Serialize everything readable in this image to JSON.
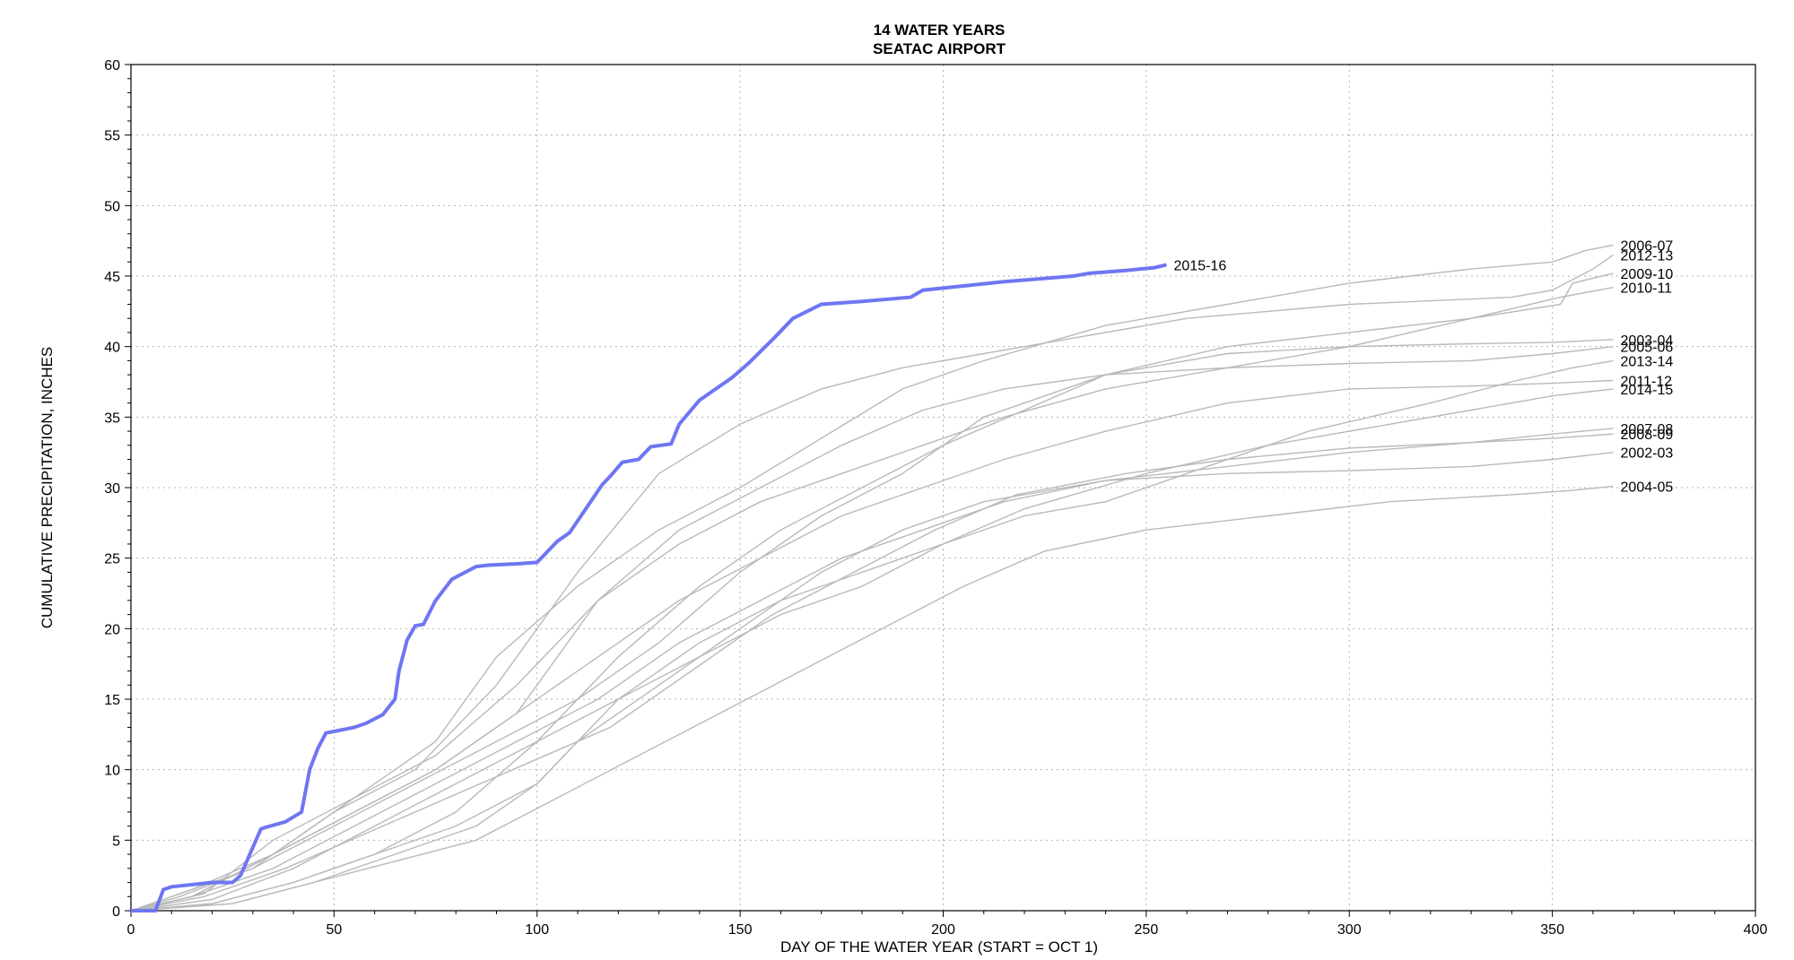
{
  "chart_data": {
    "type": "line",
    "title": "14 WATER YEARS",
    "subtitle": "SEATAC AIRPORT",
    "xlabel": "DAY OF THE WATER YEAR (START = OCT 1)",
    "ylabel": "CUMULATIVE PRECIPITATION, INCHES",
    "xlim": [
      0,
      400
    ],
    "ylim": [
      0,
      60
    ],
    "xticks": [
      0,
      50,
      100,
      150,
      200,
      250,
      300,
      350,
      400
    ],
    "yticks": [
      0,
      5,
      10,
      15,
      20,
      25,
      30,
      35,
      40,
      45,
      50,
      55,
      60
    ],
    "grid": true,
    "colors": {
      "highlight": "#6f76f2",
      "highlight_label": "#2a3ff0",
      "other": "#b9b9b9"
    },
    "series": [
      {
        "name": "2015-16",
        "highlight": true,
        "x": [
          0,
          6,
          8,
          10,
          20,
          25,
          27,
          32,
          33,
          38,
          42,
          44,
          46,
          48,
          55,
          58,
          62,
          65,
          66,
          68,
          70,
          72,
          75,
          79,
          81,
          85,
          88,
          95,
          100,
          105,
          108,
          112,
          116,
          118,
          121,
          125,
          128,
          133,
          135,
          140,
          148,
          152,
          158,
          163,
          170,
          180,
          192,
          195,
          205,
          215,
          232,
          236,
          245,
          252,
          255
        ],
        "y": [
          0,
          0,
          1.5,
          1.7,
          2,
          2,
          2.5,
          5.8,
          5.9,
          6.3,
          7,
          10,
          11.5,
          12.6,
          13,
          13.3,
          13.9,
          15,
          17,
          19.2,
          20.2,
          20.3,
          22,
          23.5,
          23.8,
          24.4,
          24.5,
          24.6,
          24.7,
          26.2,
          26.8,
          28.5,
          30.2,
          30.8,
          31.8,
          32,
          32.9,
          33.1,
          34.5,
          36.2,
          37.8,
          38.8,
          40.5,
          42,
          43,
          43.2,
          43.5,
          44,
          44.3,
          44.6,
          45,
          45.2,
          45.4,
          45.6,
          45.8
        ]
      },
      {
        "name": "2006-07",
        "x": [
          0,
          10,
          30,
          45,
          60,
          75,
          90,
          110,
          130,
          150,
          170,
          190,
          210,
          240,
          270,
          300,
          330,
          350,
          358,
          365
        ],
        "y": [
          0,
          1,
          3,
          6,
          9,
          12,
          18,
          23,
          27,
          30,
          33.5,
          37,
          39,
          41.5,
          43,
          44.5,
          45.5,
          46,
          46.8,
          47.2
        ]
      },
      {
        "name": "2012-13",
        "x": [
          0,
          15,
          35,
          50,
          70,
          90,
          110,
          130,
          150,
          170,
          190,
          210,
          230,
          260,
          300,
          340,
          350,
          360,
          365
        ],
        "y": [
          0,
          1.5,
          4,
          7,
          10,
          16,
          24,
          31,
          34.5,
          37,
          38.5,
          39.5,
          40.5,
          42,
          43,
          43.5,
          44,
          45.5,
          46.5
        ]
      },
      {
        "name": "2009-10",
        "x": [
          0,
          12,
          30,
          50,
          70,
          90,
          110,
          130,
          150,
          170,
          190,
          210,
          240,
          270,
          300,
          330,
          352,
          355,
          365
        ],
        "y": [
          0,
          1,
          3,
          6,
          9,
          12,
          15,
          19,
          24,
          28,
          31,
          35,
          38,
          40,
          41,
          42,
          43,
          44.5,
          45.2
        ]
      },
      {
        "name": "2010-11",
        "x": [
          0,
          18,
          35,
          55,
          75,
          95,
          115,
          135,
          155,
          175,
          195,
          215,
          240,
          270,
          300,
          330,
          352,
          365
        ],
        "y": [
          0,
          1.2,
          5,
          8,
          11,
          16,
          22,
          26,
          29,
          31,
          33,
          35,
          37,
          38.5,
          40,
          42,
          43.5,
          44.2
        ]
      },
      {
        "name": "2003-04",
        "x": [
          0,
          20,
          40,
          60,
          80,
          100,
          120,
          140,
          160,
          180,
          200,
          220,
          240,
          270,
          300,
          330,
          350,
          365
        ],
        "y": [
          0,
          0.5,
          2,
          4,
          7,
          12,
          18,
          23,
          27,
          30,
          33,
          35.5,
          38,
          39.5,
          40,
          40.2,
          40.3,
          40.5
        ]
      },
      {
        "name": "2005-06",
        "x": [
          0,
          15,
          35,
          55,
          75,
          95,
          115,
          135,
          155,
          175,
          195,
          215,
          240,
          270,
          300,
          330,
          350,
          365
        ],
        "y": [
          0,
          1,
          4,
          7,
          10,
          14,
          22,
          27,
          30,
          33,
          35.5,
          37,
          38,
          38.5,
          38.8,
          39,
          39.5,
          40
        ]
      },
      {
        "name": "2013-14",
        "x": [
          0,
          20,
          40,
          60,
          80,
          100,
          120,
          140,
          160,
          180,
          200,
          220,
          240,
          260,
          290,
          320,
          340,
          355,
          365
        ],
        "y": [
          0,
          0.5,
          2,
          4,
          6,
          9,
          15,
          19,
          22,
          24,
          26,
          28,
          29,
          31,
          34,
          36,
          37.5,
          38.5,
          39
        ]
      },
      {
        "name": "2011-12",
        "x": [
          0,
          15,
          35,
          55,
          75,
          95,
          115,
          135,
          155,
          175,
          195,
          215,
          240,
          270,
          300,
          330,
          350,
          365
        ],
        "y": [
          0,
          1,
          4,
          7,
          10,
          14,
          18,
          22,
          25,
          28,
          30,
          32,
          34,
          36,
          37,
          37.2,
          37.4,
          37.6
        ]
      },
      {
        "name": "2014-15",
        "x": [
          0,
          20,
          40,
          60,
          80,
          100,
          120,
          140,
          160,
          180,
          200,
          220,
          250,
          280,
          300,
          330,
          350,
          365
        ],
        "y": [
          0,
          0.8,
          3,
          6,
          9,
          12,
          15,
          18,
          21,
          23,
          26,
          28.5,
          31,
          33,
          34,
          35.5,
          36.5,
          37
        ]
      },
      {
        "name": "2007-08",
        "x": [
          0,
          15,
          35,
          55,
          75,
          95,
          115,
          135,
          155,
          175,
          195,
          215,
          240,
          270,
          300,
          330,
          350,
          365
        ],
        "y": [
          0,
          1,
          3,
          6,
          9,
          12,
          15,
          19,
          22,
          25,
          27,
          29,
          30.5,
          31.5,
          32.5,
          33.2,
          33.8,
          34.2
        ]
      },
      {
        "name": "2008-09",
        "x": [
          0,
          18,
          38,
          58,
          78,
          98,
          118,
          138,
          158,
          178,
          198,
          218,
          245,
          270,
          300,
          330,
          350,
          365
        ],
        "y": [
          0,
          1,
          3,
          5.5,
          8,
          10.5,
          13,
          17,
          21,
          24,
          27,
          29.5,
          31,
          32,
          32.8,
          33.2,
          33.5,
          33.8
        ]
      },
      {
        "name": "2002-03",
        "x": [
          0,
          25,
          45,
          65,
          85,
          100,
          110,
          130,
          150,
          170,
          190,
          210,
          240,
          270,
          300,
          330,
          350,
          365
        ],
        "y": [
          0,
          0.5,
          2,
          4,
          6,
          9,
          12,
          16,
          20,
          24,
          27,
          29,
          30.5,
          31,
          31.2,
          31.5,
          32,
          32.5
        ]
      },
      {
        "name": "2004-05",
        "x": [
          0,
          25,
          45,
          65,
          85,
          105,
          125,
          145,
          165,
          185,
          205,
          225,
          250,
          280,
          310,
          340,
          355,
          365
        ],
        "y": [
          0,
          0.5,
          2,
          3.5,
          5,
          8,
          11,
          14,
          17,
          20,
          23,
          25.5,
          27,
          28,
          29,
          29.5,
          29.8,
          30.1
        ]
      }
    ]
  }
}
